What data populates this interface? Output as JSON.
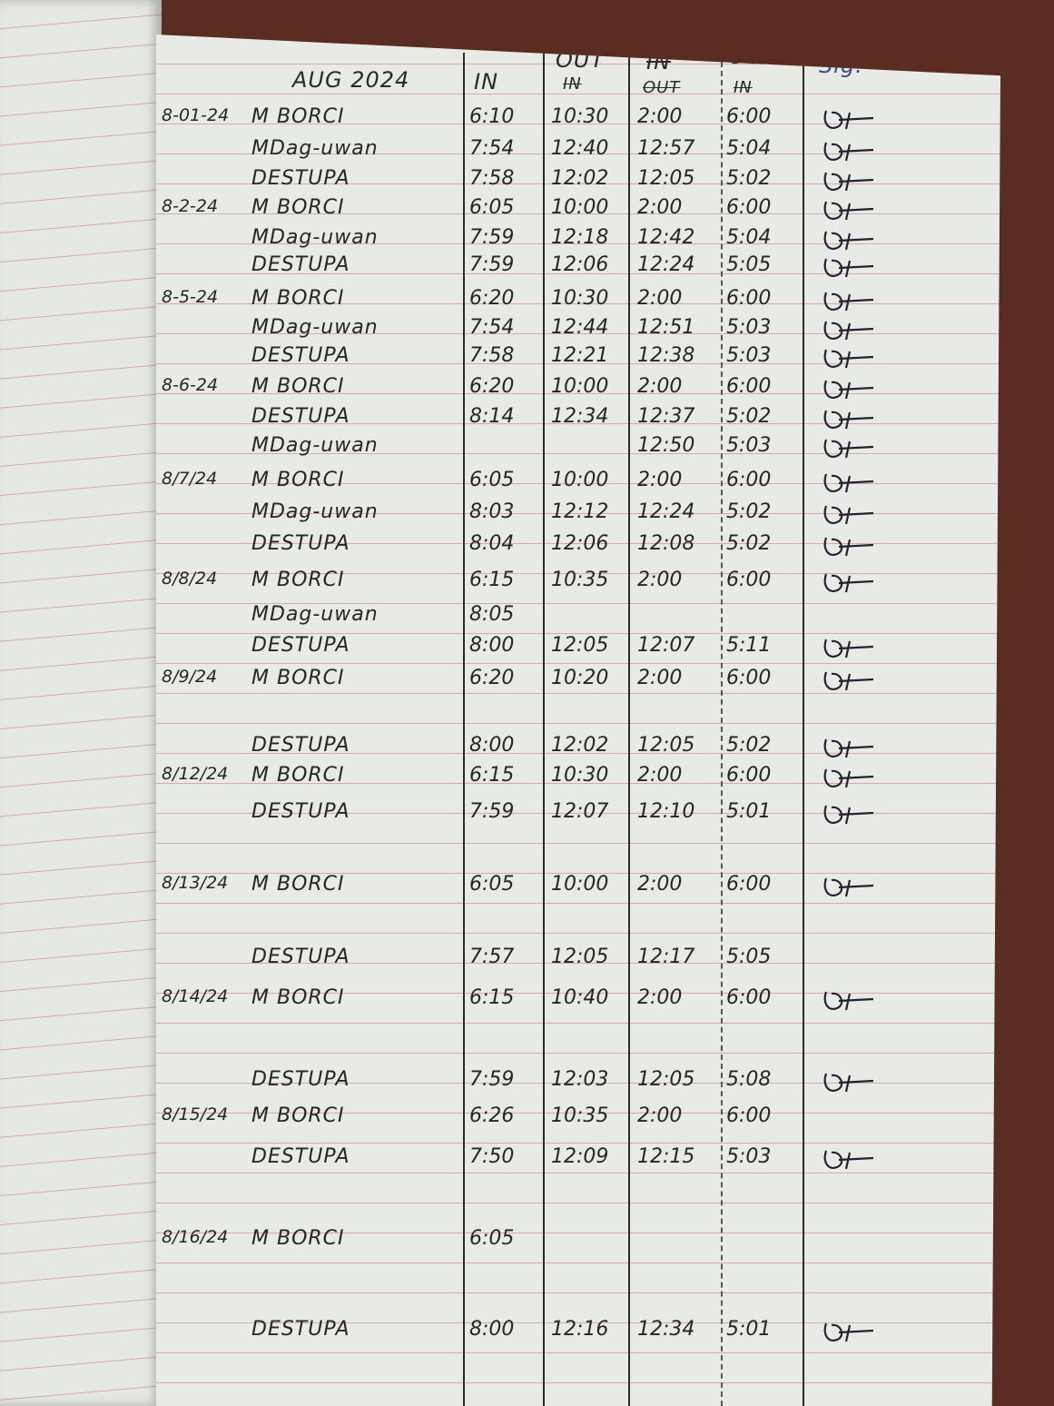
{
  "header": {
    "month": "AUG 2024",
    "col_in1": "IN",
    "col_out1": "OUT",
    "col_out1_struck": "IN",
    "col_in2_struck": "IN",
    "col_in2": "OUT",
    "col_out2": "OUT",
    "col_out2_struck": "IN",
    "col_sig": "Sig."
  },
  "rows": [
    {
      "date": "8-01-24",
      "name": "M BORCI",
      "in1": "6:10",
      "out1": "10:30",
      "in2": "2:00",
      "out2": "6:00"
    },
    {
      "date": "",
      "name": "MDag-uwan",
      "in1": "7:54",
      "out1": "12:40",
      "in2": "12:57",
      "out2": "5:04"
    },
    {
      "date": "",
      "name": "DESTUPA",
      "in1": "7:58",
      "out1": "12:02",
      "in2": "12:05",
      "out2": "5:02"
    },
    {
      "date": "8-2-24",
      "name": "M BORCI",
      "in1": "6:05",
      "out1": "10:00",
      "in2": "2:00",
      "out2": "6:00"
    },
    {
      "date": "",
      "name": "MDag-uwan",
      "in1": "7:59",
      "out1": "12:18",
      "in2": "12:42",
      "out2": "5:04"
    },
    {
      "date": "",
      "name": "DESTUPA",
      "in1": "7:59",
      "out1": "12:06",
      "in2": "12:24",
      "out2": "5:05"
    },
    {
      "date": "8-5-24",
      "name": "M BORCI",
      "in1": "6:20",
      "out1": "10:30",
      "in2": "2:00",
      "out2": "6:00"
    },
    {
      "date": "",
      "name": "MDag-uwan",
      "in1": "7:54",
      "out1": "12:44",
      "in2": "12:51",
      "out2": "5:03"
    },
    {
      "date": "",
      "name": "DESTUPA",
      "in1": "7:58",
      "out1": "12:21",
      "in2": "12:38",
      "out2": "5:03"
    },
    {
      "date": "8-6-24",
      "name": "M BORCI",
      "in1": "6:20",
      "out1": "10:00",
      "in2": "2:00",
      "out2": "6:00"
    },
    {
      "date": "",
      "name": "DESTUPA",
      "in1": "8:14",
      "out1": "12:34",
      "in2": "12:37",
      "out2": "5:02"
    },
    {
      "date": "",
      "name": "MDag-uwan",
      "in1": "",
      "out1": "",
      "in2": "12:50",
      "out2": "5:03"
    },
    {
      "date": "8/7/24",
      "name": "M BORCI",
      "in1": "6:05",
      "out1": "10:00",
      "in2": "2:00",
      "out2": "6:00"
    },
    {
      "date": "",
      "name": "MDag-uwan",
      "in1": "8:03",
      "out1": "12:12",
      "in2": "12:24",
      "out2": "5:02"
    },
    {
      "date": "",
      "name": "DESTUPA",
      "in1": "8:04",
      "out1": "12:06",
      "in2": "12:08",
      "out2": "5:02"
    },
    {
      "date": "8/8/24",
      "name": "M BORCI",
      "in1": "6:15",
      "out1": "10:35",
      "in2": "2:00",
      "out2": "6:00"
    },
    {
      "date": "",
      "name": "MDag-uwan",
      "in1": "8:05",
      "out1": "",
      "in2": "",
      "out2": ""
    },
    {
      "date": "",
      "name": "DESTUPA",
      "in1": "8:00",
      "out1": "12:05",
      "in2": "12:07",
      "out2": "5:11"
    },
    {
      "date": "8/9/24",
      "name": "M BORCI",
      "in1": "6:20",
      "out1": "10:20",
      "in2": "2:00",
      "out2": "6:00"
    },
    {
      "date": "",
      "name": "DESTUPA",
      "in1": "8:00",
      "out1": "12:02",
      "in2": "12:05",
      "out2": "5:02"
    },
    {
      "date": "8/12/24",
      "name": "M BORCI",
      "in1": "6:15",
      "out1": "10:30",
      "in2": "2:00",
      "out2": "6:00"
    },
    {
      "date": "",
      "name": "DESTUPA",
      "in1": "7:59",
      "out1": "12:07",
      "in2": "12:10",
      "out2": "5:01"
    },
    {
      "date": "8/13/24",
      "name": "M BORCI",
      "in1": "6:05",
      "out1": "10:00",
      "in2": "2:00",
      "out2": "6:00"
    },
    {
      "date": "",
      "name": "DESTUPA",
      "in1": "7:57",
      "out1": "12:05",
      "in2": "12:17",
      "out2": "5:05"
    },
    {
      "date": "8/14/24",
      "name": "M BORCI",
      "in1": "6:15",
      "out1": "10:40",
      "in2": "2:00",
      "out2": "6:00"
    },
    {
      "date": "",
      "name": "DESTUPA",
      "in1": "7:59",
      "out1": "12:03",
      "in2": "12:05",
      "out2": "5:08"
    },
    {
      "date": "8/15/24",
      "name": "M BORCI",
      "in1": "6:26",
      "out1": "10:35",
      "in2": "2:00",
      "out2": "6:00"
    },
    {
      "date": "",
      "name": "DESTUPA",
      "in1": "7:50",
      "out1": "12:09",
      "in2": "12:15",
      "out2": "5:03"
    },
    {
      "date": "8/16/24",
      "name": "M BORCI",
      "in1": "6:05",
      "out1": "",
      "in2": "",
      "out2": ""
    },
    {
      "date": "",
      "name": "DESTUPA",
      "in1": "8:00",
      "out1": "12:16",
      "in2": "12:34",
      "out2": "5:01"
    }
  ],
  "signed": [
    true,
    true,
    true,
    true,
    true,
    true,
    true,
    true,
    true,
    true,
    true,
    true,
    true,
    true,
    true,
    true,
    false,
    true,
    true,
    true,
    true,
    true,
    true,
    false,
    true,
    true,
    false,
    true,
    false,
    true
  ],
  "colors": {
    "ink": "#262626",
    "paper": "#e8ebe5",
    "rule": "#dba4ae",
    "desk": "#5b2c22"
  }
}
